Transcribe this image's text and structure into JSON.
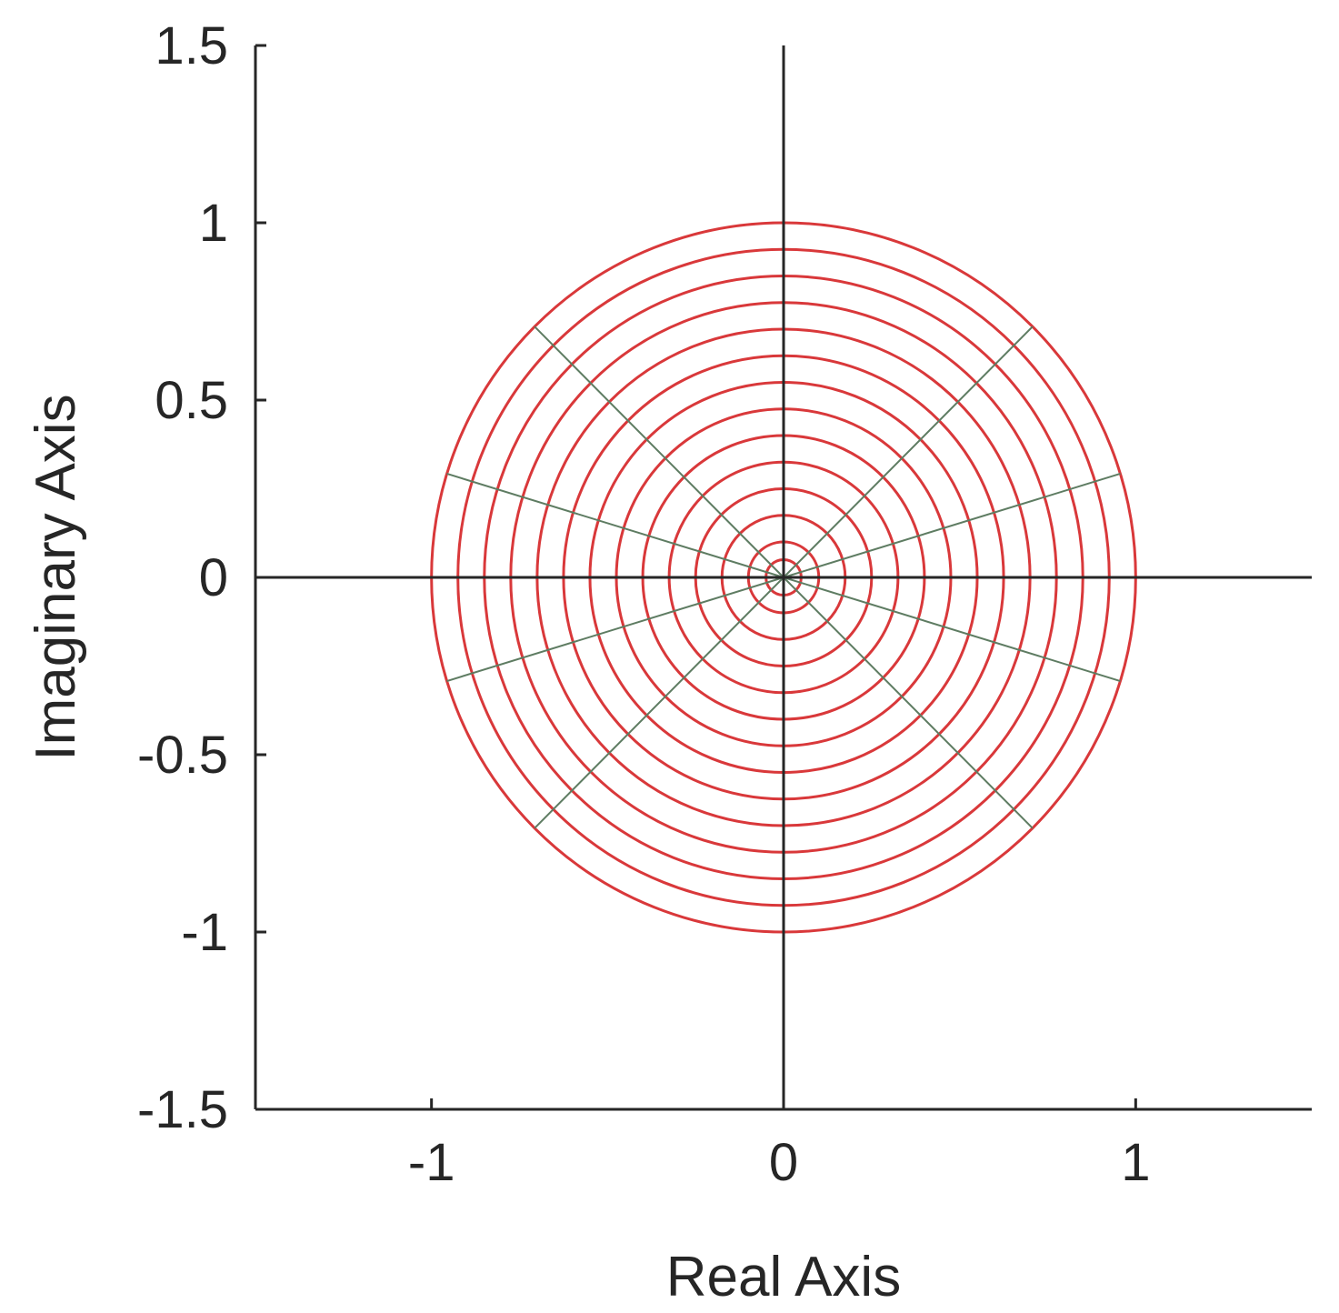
{
  "chart_data": {
    "type": "scatter",
    "xlabel": "Real Axis",
    "ylabel": "Imaginary Axis",
    "xlim": [
      -1.5,
      1.5
    ],
    "ylim": [
      -1.5,
      1.5
    ],
    "x_ticks": [
      -1,
      0,
      1
    ],
    "x_tick_labels": [
      "-1",
      "0",
      "1"
    ],
    "y_ticks": [
      -1.5,
      -1,
      -0.5,
      0,
      0.5,
      1,
      1.5
    ],
    "y_tick_labels": [
      "-1.5",
      "-1",
      "-0.5",
      "0",
      "0.5",
      "1",
      "1.5"
    ],
    "grid": false,
    "circles": {
      "center": [
        0,
        0
      ],
      "radii": [
        0.05,
        0.1,
        0.175,
        0.25,
        0.325,
        0.4,
        0.475,
        0.55,
        0.625,
        0.7,
        0.775,
        0.85,
        0.925,
        1.0
      ],
      "color": "#d9383a"
    },
    "radial_lines": {
      "radius": 1.0,
      "angles_deg": [
        0,
        17,
        45,
        90,
        135,
        163,
        180,
        197,
        225,
        270,
        315,
        343
      ],
      "color": "#5e7c62"
    },
    "zero_lines": {
      "color": "#262626"
    }
  }
}
